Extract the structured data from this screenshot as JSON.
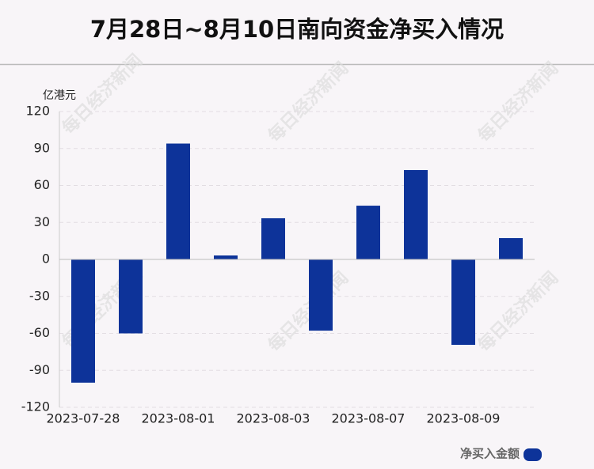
{
  "chart_data": {
    "type": "bar",
    "title": "7月28日~8月10日南向资金净买入情况",
    "y_axis_label": "亿港元",
    "watermark": "每日经济新闻",
    "categories": [
      "2023-07-28",
      null,
      "2023-08-01",
      null,
      "2023-08-03",
      null,
      "2023-08-07",
      null,
      "2023-08-09",
      null
    ],
    "series": [
      {
        "name": "净买入金额",
        "color": "#0d3399",
        "values": [
          -100,
          -60,
          94,
          3.2,
          33.4,
          -57.8,
          43.6,
          72.5,
          -69.3,
          17.3
        ]
      }
    ],
    "ylim": [
      -120,
      120
    ],
    "yticks": [
      -120,
      -90,
      -60,
      -30,
      0,
      30,
      60,
      90,
      120
    ],
    "grid": true
  }
}
